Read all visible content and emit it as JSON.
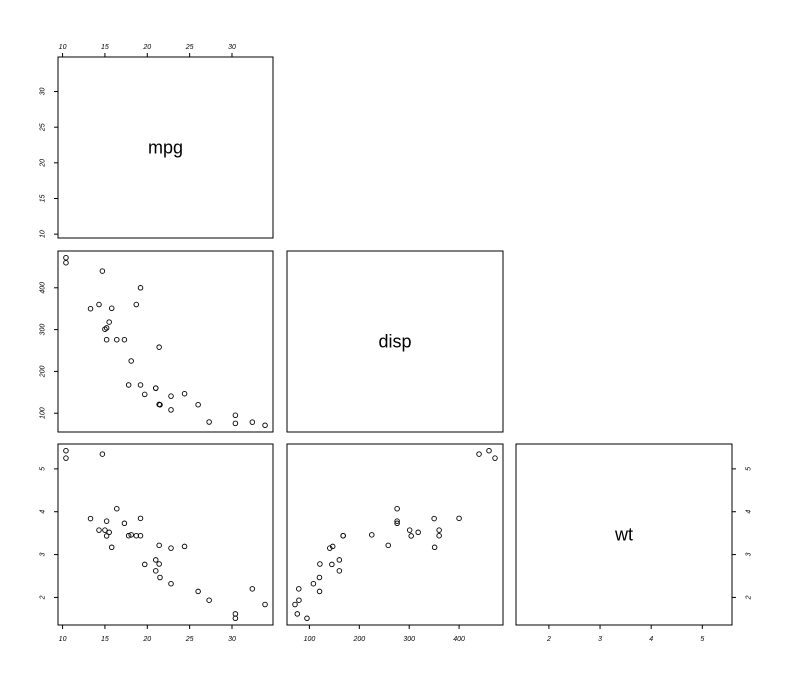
{
  "chart_data": {
    "type": "scatter",
    "variables": [
      "mpg",
      "disp",
      "wt"
    ],
    "ranges": {
      "mpg": [
        10.4,
        33.9
      ],
      "disp": [
        71.1,
        472
      ],
      "wt": [
        1.513,
        5.424
      ]
    },
    "ticks": {
      "mpg": [
        10,
        15,
        20,
        25,
        30
      ],
      "disp": [
        100,
        200,
        300,
        400
      ],
      "wt": [
        2,
        3,
        4,
        5
      ]
    },
    "observations": {
      "mpg": [
        21,
        21,
        22.8,
        21.4,
        18.7,
        18.1,
        14.3,
        24.4,
        22.8,
        19.2,
        17.8,
        16.4,
        17.3,
        15.2,
        10.4,
        10.4,
        14.7,
        32.4,
        30.4,
        33.9,
        21.5,
        15.5,
        15.2,
        13.3,
        19.2,
        27.3,
        26,
        30.4,
        15.8,
        19.7,
        15,
        21.4
      ],
      "disp": [
        160,
        160,
        108,
        258,
        360,
        225,
        360,
        146.7,
        140.8,
        167.6,
        167.6,
        275.8,
        275.8,
        275.8,
        472,
        460,
        440,
        78.7,
        75.7,
        71.1,
        120.1,
        318,
        304,
        350,
        400,
        79,
        120.3,
        95.1,
        351,
        145,
        301,
        121
      ],
      "wt": [
        2.62,
        2.875,
        2.32,
        3.215,
        3.44,
        3.46,
        3.57,
        3.19,
        3.15,
        3.44,
        3.44,
        4.07,
        3.73,
        3.78,
        5.25,
        5.424,
        5.345,
        2.2,
        1.615,
        1.835,
        2.465,
        3.52,
        3.435,
        3.84,
        3.845,
        1.935,
        2.14,
        1.513,
        3.17,
        2.77,
        3.57,
        2.78
      ]
    },
    "panels": [
      {
        "row": 1,
        "col": 0,
        "x": "mpg",
        "y": "disp"
      },
      {
        "row": 2,
        "col": 0,
        "x": "mpg",
        "y": "wt"
      },
      {
        "row": 2,
        "col": 1,
        "x": "disp",
        "y": "wt"
      }
    ],
    "diagonal_labels": [
      "mpg",
      "disp",
      "wt"
    ],
    "grid": false,
    "title": "",
    "point_color": "#000000"
  }
}
